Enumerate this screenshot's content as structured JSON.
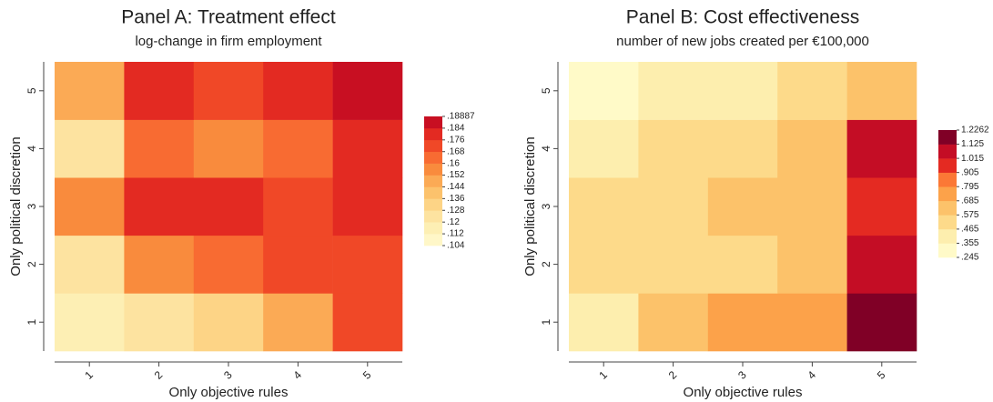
{
  "chart_data": [
    {
      "type": "heatmap",
      "title": "Panel A: Treatment effect",
      "subtitle": "log-change in firm employment",
      "x_label": "Only objective rules",
      "y_label": "Only political discretion",
      "x": [
        1,
        2,
        3,
        4,
        5
      ],
      "y": [
        1,
        2,
        3,
        4,
        5
      ],
      "xlim": [
        0.5,
        5.5
      ],
      "ylim": [
        0.5,
        5.5
      ],
      "z": [
        [
          0.115,
          0.122,
          0.13,
          0.145,
          0.172
        ],
        [
          0.125,
          0.155,
          0.165,
          0.172,
          0.172
        ],
        [
          0.155,
          0.18,
          0.18,
          0.172,
          0.178
        ],
        [
          0.125,
          0.165,
          0.155,
          0.163,
          0.178
        ],
        [
          0.15,
          0.178,
          0.172,
          0.178,
          0.188
        ]
      ],
      "legend_ticks": [
        {
          "value": 0.104,
          "label": ".104"
        },
        {
          "value": 0.112,
          "label": ".112"
        },
        {
          "value": 0.12,
          "label": ".12"
        },
        {
          "value": 0.128,
          "label": ".128"
        },
        {
          "value": 0.136,
          "label": ".136"
        },
        {
          "value": 0.144,
          "label": ".144"
        },
        {
          "value": 0.152,
          "label": ".152"
        },
        {
          "value": 0.16,
          "label": ".16"
        },
        {
          "value": 0.168,
          "label": ".168"
        },
        {
          "value": 0.176,
          "label": ".176"
        },
        {
          "value": 0.184,
          "label": ".184"
        },
        {
          "value": 0.18887,
          "label": ".18887"
        }
      ],
      "colors": [
        "#fff7c8",
        "#fdefb4",
        "#fde3a0",
        "#fdd486",
        "#fcc26c",
        "#fbaa55",
        "#f98b3d",
        "#f86b32",
        "#f04827",
        "#e32a22",
        "#c80f22",
        "#800026"
      ]
    },
    {
      "type": "heatmap",
      "title": "Panel B: Cost effectiveness",
      "subtitle": "number of new jobs created per €100,000",
      "x_label": "Only objective rules",
      "y_label": "Only political discretion",
      "x": [
        1,
        2,
        3,
        4,
        5
      ],
      "y": [
        1,
        2,
        3,
        4,
        5
      ],
      "xlim": [
        0.5,
        5.5
      ],
      "ylim": [
        0.5,
        5.5
      ],
      "z": [
        [
          0.4,
          0.65,
          0.75,
          0.75,
          1.2
        ],
        [
          0.52,
          0.52,
          0.52,
          0.6,
          1.1
        ],
        [
          0.52,
          0.52,
          0.6,
          0.65,
          1.0
        ],
        [
          0.4,
          0.52,
          0.52,
          0.65,
          1.1
        ],
        [
          0.3,
          0.4,
          0.4,
          0.52,
          0.65
        ]
      ],
      "legend_ticks": [
        {
          "value": 0.245,
          "label": ".245"
        },
        {
          "value": 0.355,
          "label": ".355"
        },
        {
          "value": 0.465,
          "label": ".465"
        },
        {
          "value": 0.575,
          "label": ".575"
        },
        {
          "value": 0.685,
          "label": ".685"
        },
        {
          "value": 0.795,
          "label": ".795"
        },
        {
          "value": 0.905,
          "label": ".905"
        },
        {
          "value": 1.015,
          "label": "1.015"
        },
        {
          "value": 1.125,
          "label": "1.125"
        },
        {
          "value": 1.2262,
          "label": "1.2262"
        }
      ],
      "colors": [
        "#fffac8",
        "#fdeeae",
        "#fdda8a",
        "#fcc26a",
        "#fca24a",
        "#fb7836",
        "#e42a22",
        "#c40d25",
        "#800026"
      ]
    }
  ]
}
